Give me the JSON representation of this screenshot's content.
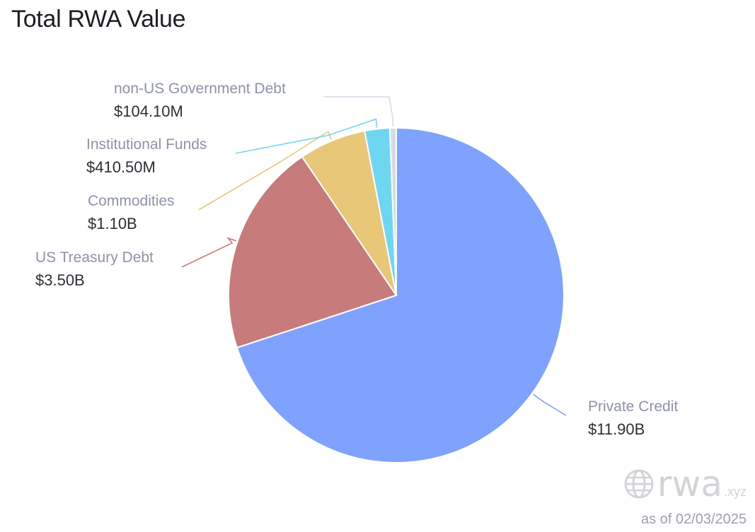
{
  "chart_data": {
    "type": "pie",
    "title": "Total RWA Value",
    "slices": [
      {
        "name": "Private Credit",
        "value_label": "$11.90B",
        "value": 11.9,
        "color": "#7fa2fe"
      },
      {
        "name": "US Treasury Debt",
        "value_label": "$3.50B",
        "value": 3.5,
        "color": "#c77b7b"
      },
      {
        "name": "Commodities",
        "value_label": "$1.10B",
        "value": 1.1,
        "color": "#e8c778"
      },
      {
        "name": "Institutional Funds",
        "value_label": "$410.50M",
        "value": 0.4105,
        "color": "#6fd6f2"
      },
      {
        "name": "non-US Government Debt",
        "value_label": "$104.10M",
        "value": 0.1041,
        "color": "#d6dce6"
      }
    ]
  },
  "watermark": {
    "brand": "rwa",
    "tld": ".xyz",
    "icon": "globe-icon"
  },
  "as_of": "as of 02/03/2025"
}
